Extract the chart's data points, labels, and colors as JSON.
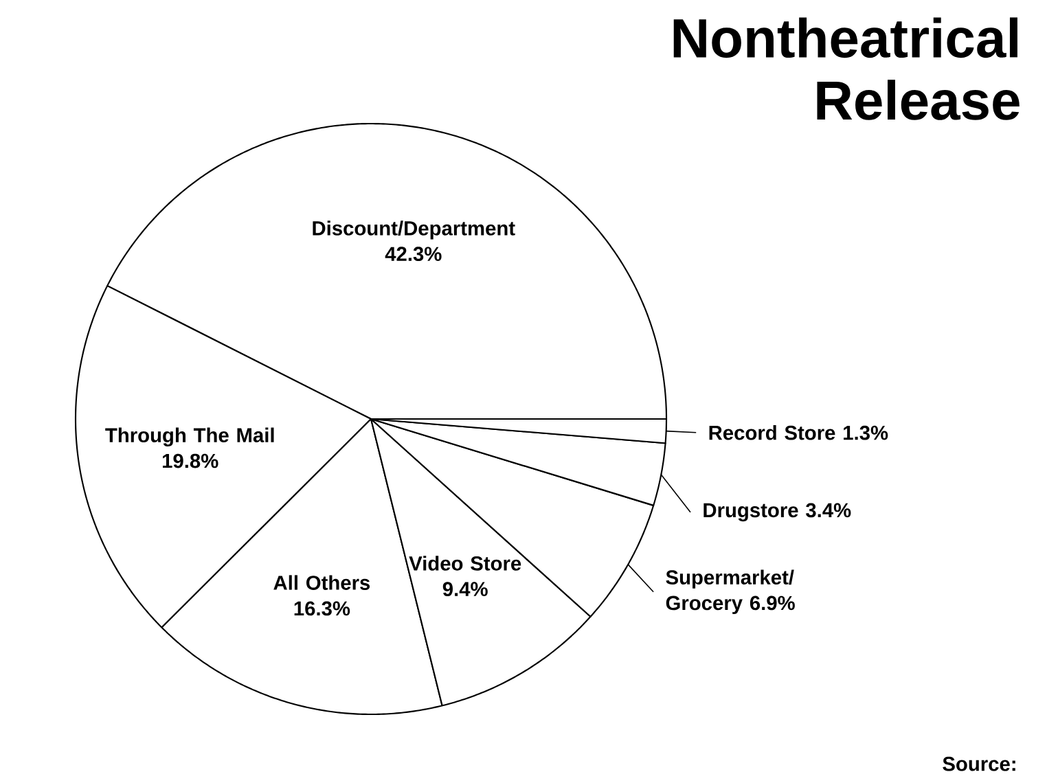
{
  "chart_data": {
    "type": "pie",
    "title": "Nontheatrical Release",
    "categories": [
      "Discount/Department",
      "Through The Mail",
      "All Others",
      "Video Store",
      "Supermarket/ Grocery",
      "Drugstore",
      "Record Store"
    ],
    "values": [
      42.3,
      19.8,
      16.3,
      9.4,
      6.9,
      3.4,
      1.3
    ],
    "value_labels": [
      "42.3%",
      "19.8%",
      "16.3%",
      "9.4%",
      "6.9%",
      "3.4%",
      "1.3%"
    ],
    "colors": [
      "#ffffff",
      "#ffffff",
      "#ffffff",
      "#ffffff",
      "#ffffff",
      "#ffffff",
      "#ffffff"
    ],
    "annotations": [
      "Source:"
    ]
  }
}
